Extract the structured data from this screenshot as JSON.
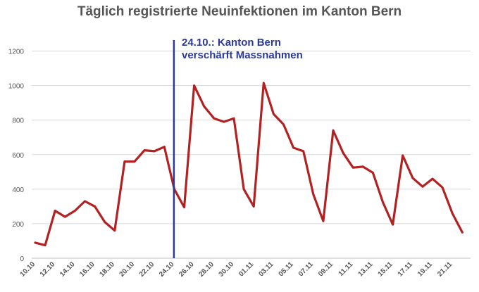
{
  "chart_data": {
    "type": "line",
    "title": "Täglich registrierte Neuinfektionen im Kanton Bern",
    "xlabel": "",
    "ylabel": "",
    "ylim": [
      0,
      1300
    ],
    "yticks": [
      0,
      200,
      400,
      600,
      800,
      1000,
      1200
    ],
    "grid": true,
    "x": [
      "10.10",
      "11.10",
      "12.10",
      "13.10",
      "14.10",
      "15.10",
      "16.10",
      "17.10",
      "18.10",
      "19.10",
      "20.10",
      "21.10",
      "22.10",
      "23.10",
      "24.10",
      "25.10",
      "26.10",
      "27.10",
      "28.10",
      "29.10",
      "30.10",
      "31.10",
      "01.11",
      "02.11",
      "03.11",
      "04.11",
      "05.11",
      "06.11",
      "07.11",
      "08.11",
      "09.11",
      "10.11",
      "11.11",
      "12.11",
      "13.11",
      "14.11",
      "15.11",
      "16.11",
      "17.11",
      "18.11",
      "19.11",
      "20.11",
      "21.11",
      "22.11"
    ],
    "x_tick_labels": [
      "10.10",
      "12.10",
      "14.10",
      "16.10",
      "18.10",
      "20.10",
      "22.10",
      "24.10",
      "26.10",
      "28.10",
      "30.10",
      "01.11",
      "03.11",
      "05.11",
      "07.11",
      "09.11",
      "11.11",
      "13.11",
      "15.11",
      "17.11",
      "19.11",
      "21.11"
    ],
    "series": [
      {
        "name": "",
        "color": "#b22222",
        "values": [
          90,
          75,
          275,
          240,
          275,
          330,
          300,
          210,
          160,
          560,
          560,
          625,
          620,
          645,
          400,
          295,
          1000,
          880,
          810,
          790,
          810,
          400,
          300,
          1015,
          835,
          775,
          640,
          620,
          370,
          215,
          740,
          610,
          525,
          530,
          495,
          325,
          195,
          595,
          465,
          415,
          460,
          410,
          260,
          150
        ]
      }
    ],
    "annotation": {
      "x": "24.10",
      "color": "#2b3a99",
      "lines": [
        "24.10.: Kanton Bern",
        "verschärft Massnahmen"
      ]
    }
  }
}
